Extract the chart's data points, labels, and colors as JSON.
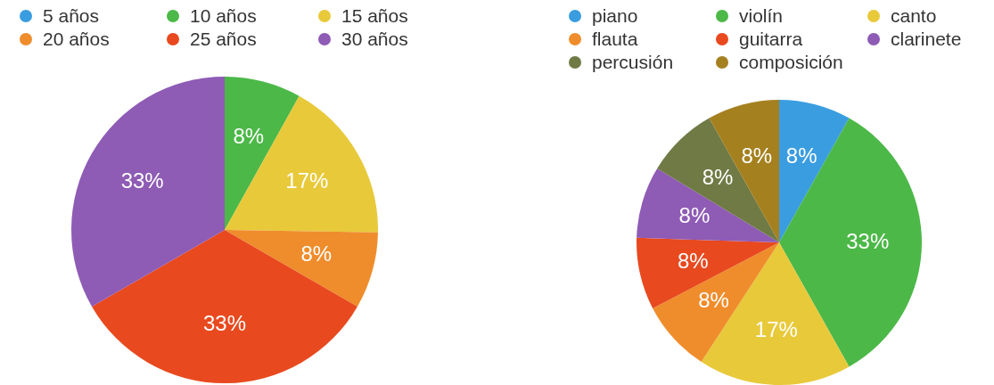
{
  "chart_data": [
    {
      "type": "pie",
      "categories": [
        "5 años",
        "10 años",
        "15 años",
        "20 años",
        "25 años",
        "30 años"
      ],
      "values": [
        0,
        8,
        17,
        8,
        33,
        33
      ],
      "value_labels": [
        null,
        "8%",
        "17%",
        "8%",
        "33%",
        "33%"
      ],
      "colors": [
        "#3a9de0",
        "#4cb848",
        "#e8c93a",
        "#ef8d2c",
        "#e8491f",
        "#8e5bb5"
      ],
      "legend": "top"
    },
    {
      "type": "pie",
      "categories": [
        "piano",
        "violín",
        "canto",
        "flauta",
        "guitarra",
        "clarinete",
        "percusión",
        "composición"
      ],
      "values": [
        8,
        33,
        17,
        8,
        8,
        8,
        8,
        8
      ],
      "value_labels": [
        "8%",
        "33%",
        "17%",
        "8%",
        "8%",
        "8%",
        "8%",
        "8%"
      ],
      "colors": [
        "#3a9de0",
        "#4cb848",
        "#e8c93a",
        "#ef8d2c",
        "#e8491f",
        "#8e5bb5",
        "#707a45",
        "#a5801f"
      ],
      "legend": "top"
    }
  ]
}
